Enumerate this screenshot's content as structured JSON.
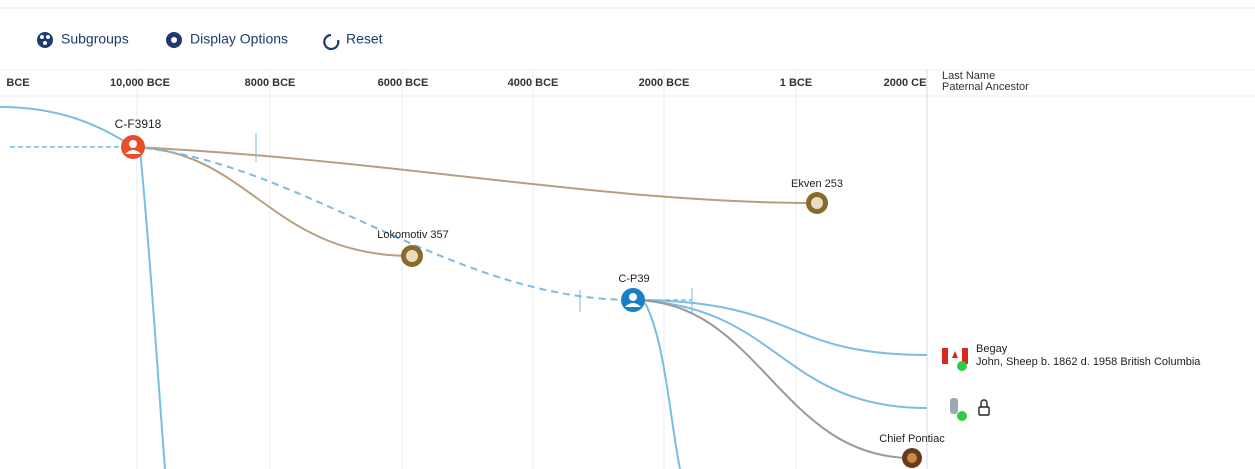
{
  "toolbar": {
    "buttons": [
      "Subgroups",
      "Display Options",
      "Reset"
    ]
  },
  "timeline": {
    "labels": [
      "BCE",
      "10,000 BCE",
      "8000 BCE",
      "6000 BCE",
      "4000 BCE",
      "2000 BCE",
      "1 BCE",
      "2000 CE"
    ]
  },
  "column_header": {
    "line1": "Last Name",
    "line2": "Paternal Ancestor"
  },
  "nodes": [
    {
      "label": "C-F3918"
    },
    {
      "label": "Ekven 253"
    },
    {
      "label": "Lokomotiv 357"
    },
    {
      "label": "C-P39"
    },
    {
      "label": "Chief Pontiac"
    }
  ],
  "rows": [
    {
      "last_name": "Begay",
      "ancestor": "John, Sheep b. 1862 d. 1958 British Columbia"
    }
  ]
}
